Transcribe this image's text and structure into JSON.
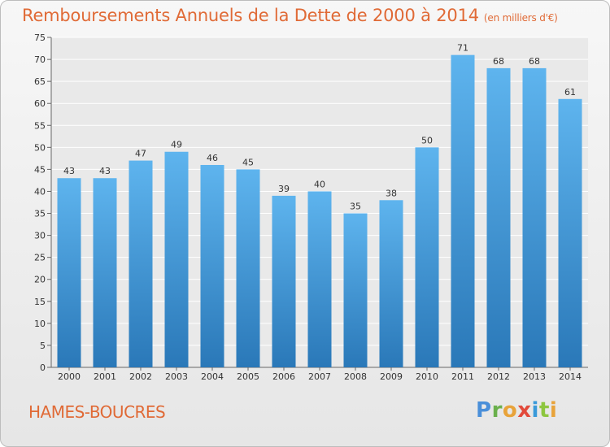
{
  "chart_data": {
    "type": "bar",
    "title": "Remboursements Annuels de la Dette de 2000 à 2014",
    "subtitle": "(en milliers d'€)",
    "categories": [
      "2000",
      "2001",
      "2002",
      "2003",
      "2004",
      "2005",
      "2006",
      "2007",
      "2008",
      "2009",
      "2010",
      "2011",
      "2012",
      "2013",
      "2014"
    ],
    "values": [
      43,
      43,
      47,
      49,
      46,
      45,
      39,
      40,
      35,
      38,
      50,
      71,
      68,
      68,
      61
    ],
    "xlabel": "",
    "ylabel": "",
    "ylim": [
      0,
      75
    ],
    "yticks": [
      0,
      5,
      10,
      15,
      20,
      25,
      30,
      35,
      40,
      45,
      50,
      55,
      60,
      65,
      70,
      75
    ],
    "grid": true,
    "legend": "none"
  },
  "footer": {
    "town": "HAMES-BOUCRES",
    "logo_letters": [
      "P",
      "r",
      "o",
      "x",
      "i",
      "t",
      "i"
    ]
  },
  "colors": {
    "bar_top": "#5eb4ee",
    "bar_bottom": "#2a78b8",
    "accent": "#e06a36"
  }
}
